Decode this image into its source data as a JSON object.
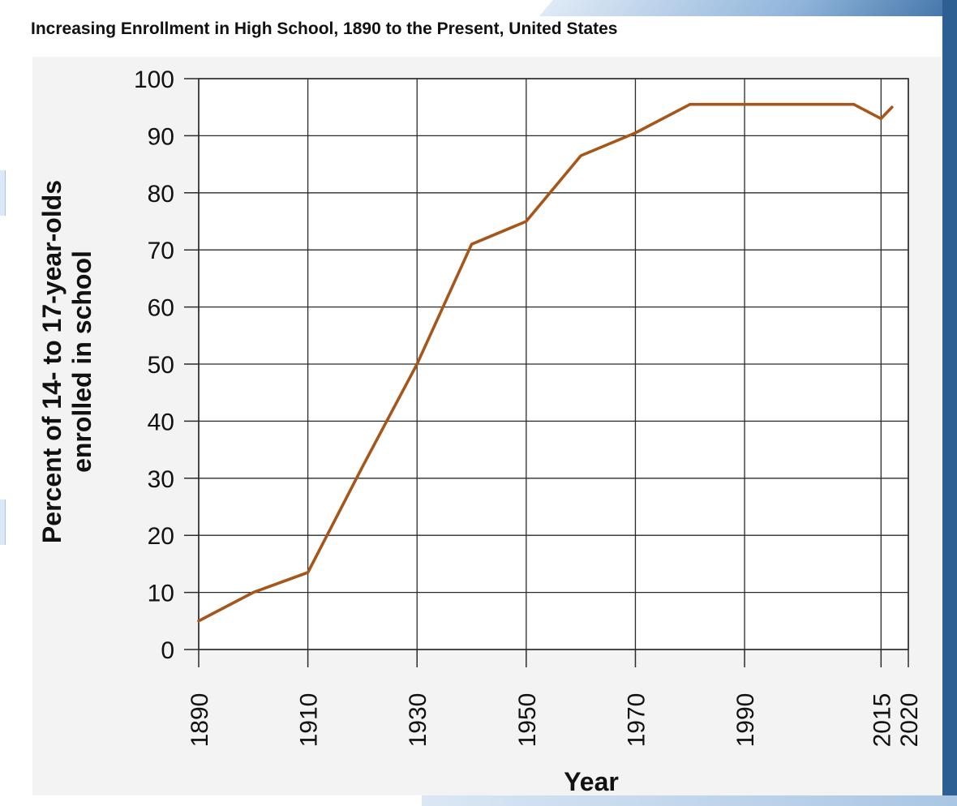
{
  "chart_data": {
    "type": "line",
    "title": "Increasing Enrollment in High School, 1890 to the Present, United States",
    "xlabel": "Year",
    "ylabel": "Percent of 14- to 17-year-olds enrolled in school",
    "ylim": [
      0,
      100
    ],
    "yticks": [
      0,
      10,
      20,
      30,
      40,
      50,
      60,
      70,
      80,
      90,
      100
    ],
    "xticks": [
      "1890",
      "1910",
      "1930",
      "1950",
      "1970",
      "1990",
      "2015",
      "2020"
    ],
    "grid": true,
    "series": [
      {
        "x": [
          1890,
          1900,
          1910,
          1920,
          1930,
          1940,
          1950,
          1960,
          1970,
          1980,
          1990,
          2000,
          2010,
          2015,
          2017
        ],
        "y": [
          5,
          10,
          13.5,
          32,
          50,
          71,
          75,
          86.5,
          90.5,
          95.5,
          95.5,
          95.5,
          95.5,
          93,
          95
        ],
        "color": "#a5561b"
      }
    ]
  }
}
